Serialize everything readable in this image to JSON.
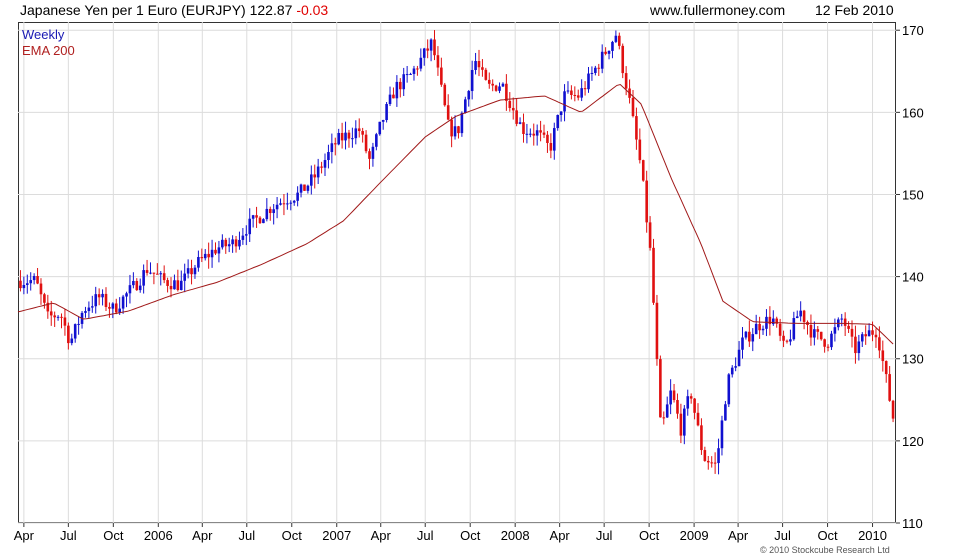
{
  "header": {
    "title": "Japanese Yen per 1 Euro (EURJPY)",
    "last": "122.87",
    "change": "-0.03",
    "site": "www.fullermoney.com",
    "date": "12 Feb 2010"
  },
  "legend": {
    "weekly": "Weekly",
    "ema": "EMA 200"
  },
  "copyright": "© 2010 Stockcube Research Ltd",
  "colors": {
    "up": "#1010d0",
    "down": "#e01010",
    "ema": "#a01818",
    "grid": "#dcdcdc",
    "axis": "#333333"
  },
  "chart_data": {
    "type": "candlestick",
    "period": "weekly",
    "ylim": [
      110,
      171
    ],
    "yticks": [
      110,
      120,
      130,
      140,
      150,
      160,
      170
    ],
    "xlim": [
      "2005-03-20",
      "2010-02-18"
    ],
    "xticks": [
      {
        "label": "Apr",
        "date": "2005-04-01"
      },
      {
        "label": "Jul",
        "date": "2005-07-01"
      },
      {
        "label": "Oct",
        "date": "2005-10-01"
      },
      {
        "label": "2006",
        "date": "2006-01-01"
      },
      {
        "label": "Apr",
        "date": "2006-04-01"
      },
      {
        "label": "Jul",
        "date": "2006-07-01"
      },
      {
        "label": "Oct",
        "date": "2006-10-01"
      },
      {
        "label": "2007",
        "date": "2007-01-01"
      },
      {
        "label": "Apr",
        "date": "2007-04-01"
      },
      {
        "label": "Jul",
        "date": "2007-07-01"
      },
      {
        "label": "Oct",
        "date": "2007-10-01"
      },
      {
        "label": "2008",
        "date": "2008-01-01"
      },
      {
        "label": "Apr",
        "date": "2008-04-01"
      },
      {
        "label": "Jul",
        "date": "2008-07-01"
      },
      {
        "label": "Oct",
        "date": "2008-10-01"
      },
      {
        "label": "2009",
        "date": "2009-01-01"
      },
      {
        "label": "Apr",
        "date": "2009-04-01"
      },
      {
        "label": "Jul",
        "date": "2009-07-01"
      },
      {
        "label": "Oct",
        "date": "2009-10-01"
      },
      {
        "label": "2010",
        "date": "2010-01-01"
      }
    ],
    "price_keypoints": [
      [
        "2005-03-25",
        139.5
      ],
      [
        "2005-04-25",
        139.5
      ],
      [
        "2005-05-20",
        135.0
      ],
      [
        "2005-06-15",
        135.5
      ],
      [
        "2005-07-05",
        132.0
      ],
      [
        "2005-08-01",
        136.0
      ],
      [
        "2005-09-01",
        137.5
      ],
      [
        "2005-10-01",
        136.0
      ],
      [
        "2005-11-15",
        139.0
      ],
      [
        "2005-12-10",
        141.0
      ],
      [
        "2006-01-10",
        139.5
      ],
      [
        "2006-02-15",
        139.0
      ],
      [
        "2006-03-20",
        141.5
      ],
      [
        "2006-05-01",
        143.5
      ],
      [
        "2006-06-01",
        144.0
      ],
      [
        "2006-07-01",
        146.0
      ],
      [
        "2006-08-20",
        148.5
      ],
      [
        "2006-09-20",
        149.5
      ],
      [
        "2006-10-15",
        150.0
      ],
      [
        "2006-11-15",
        152.0
      ],
      [
        "2007-01-01",
        156.5
      ],
      [
        "2007-02-15",
        158.0
      ],
      [
        "2007-03-10",
        154.0
      ],
      [
        "2007-04-01",
        158.5
      ],
      [
        "2007-05-01",
        163.0
      ],
      [
        "2007-06-01",
        164.5
      ],
      [
        "2007-07-15",
        168.5
      ],
      [
        "2007-08-18",
        158.0
      ],
      [
        "2007-09-05",
        157.5
      ],
      [
        "2007-10-10",
        166.5
      ],
      [
        "2007-11-05",
        163.0
      ],
      [
        "2007-12-05",
        163.5
      ],
      [
        "2008-01-15",
        158.0
      ],
      [
        "2008-02-15",
        157.5
      ],
      [
        "2008-03-12",
        155.5
      ],
      [
        "2008-04-10",
        162.0
      ],
      [
        "2008-05-10",
        162.0
      ],
      [
        "2008-06-10",
        165.0
      ],
      [
        "2008-07-25",
        169.5
      ],
      [
        "2008-08-20",
        162.0
      ],
      [
        "2008-09-15",
        153.0
      ],
      [
        "2008-10-05",
        142.0
      ],
      [
        "2008-10-25",
        121.0
      ],
      [
        "2008-11-15",
        126.0
      ],
      [
        "2008-12-05",
        121.5
      ],
      [
        "2008-12-25",
        126.0
      ],
      [
        "2009-01-20",
        118.0
      ],
      [
        "2009-02-15",
        117.0
      ],
      [
        "2009-03-10",
        127.0
      ],
      [
        "2009-04-10",
        132.0
      ],
      [
        "2009-05-10",
        134.0
      ],
      [
        "2009-06-10",
        135.0
      ],
      [
        "2009-07-05",
        131.0
      ],
      [
        "2009-08-05",
        136.0
      ],
      [
        "2009-09-01",
        133.0
      ],
      [
        "2009-10-01",
        132.0
      ],
      [
        "2009-11-01",
        135.0
      ],
      [
        "2009-11-25",
        131.0
      ],
      [
        "2009-12-20",
        133.0
      ],
      [
        "2010-01-10",
        133.5
      ],
      [
        "2010-02-12",
        122.87
      ]
    ],
    "ema_keypoints": [
      [
        "2005-03-20",
        135.7
      ],
      [
        "2005-06-01",
        136.8
      ],
      [
        "2005-08-01",
        134.8
      ],
      [
        "2005-11-01",
        135.8
      ],
      [
        "2006-02-01",
        137.8
      ],
      [
        "2006-05-01",
        139.3
      ],
      [
        "2006-08-01",
        141.5
      ],
      [
        "2006-11-01",
        144.0
      ],
      [
        "2007-01-15",
        146.8
      ],
      [
        "2007-04-01",
        151.5
      ],
      [
        "2007-07-01",
        157.0
      ],
      [
        "2007-09-01",
        159.5
      ],
      [
        "2007-12-01",
        161.5
      ],
      [
        "2008-03-01",
        162.0
      ],
      [
        "2008-05-15",
        160.0
      ],
      [
        "2008-08-01",
        163.5
      ],
      [
        "2008-09-15",
        161.0
      ],
      [
        "2008-11-15",
        152.0
      ],
      [
        "2009-01-15",
        144.0
      ],
      [
        "2009-03-01",
        137.0
      ],
      [
        "2009-05-01",
        134.5
      ],
      [
        "2009-08-01",
        134.3
      ],
      [
        "2009-11-01",
        134.3
      ],
      [
        "2010-01-01",
        134.2
      ],
      [
        "2010-02-12",
        131.8
      ]
    ]
  }
}
